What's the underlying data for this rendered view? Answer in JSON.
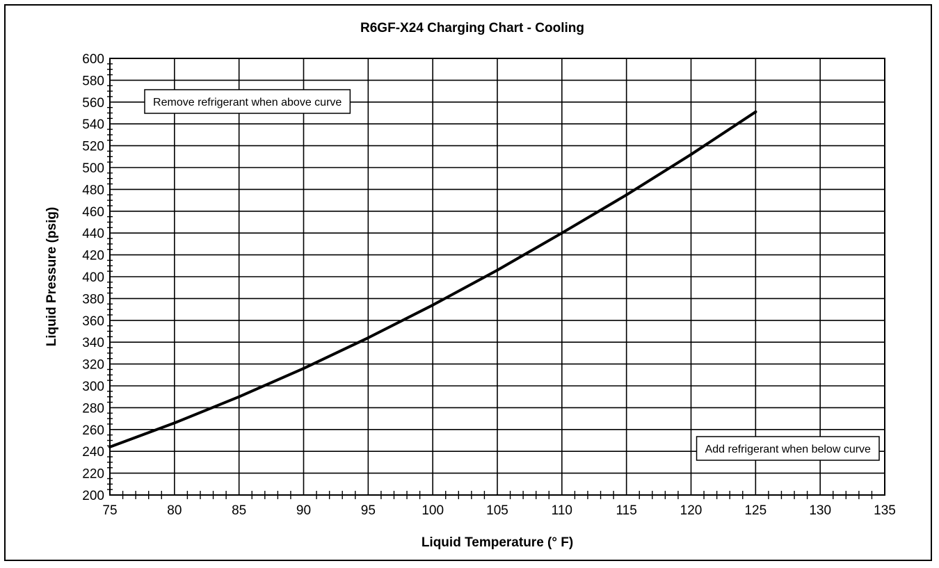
{
  "chart_data": {
    "type": "line",
    "title": "R6GF-X24 Charging Chart - Cooling",
    "xlabel": "Liquid Temperature (° F)",
    "ylabel": "Liquid Pressure (psig)",
    "xlim": [
      75,
      135
    ],
    "ylim": [
      200,
      600
    ],
    "x_ticks": [
      "75",
      "80",
      "85",
      "90",
      "95",
      "100",
      "105",
      "110",
      "115",
      "120",
      "125",
      "130",
      "135"
    ],
    "y_ticks": [
      "200",
      "220",
      "240",
      "260",
      "280",
      "300",
      "320",
      "340",
      "360",
      "380",
      "400",
      "420",
      "440",
      "460",
      "480",
      "500",
      "520",
      "540",
      "560",
      "580",
      "600"
    ],
    "grid": true,
    "legend": "none",
    "series": [
      {
        "x": [
          75,
          80,
          85,
          90,
          95,
          100,
          105,
          110,
          115,
          120,
          125
        ],
        "y": [
          244,
          266,
          290,
          316,
          344,
          374,
          406,
          440,
          475,
          512,
          551
        ],
        "color": "#000000"
      }
    ],
    "annotations": [
      {
        "text": "Remove refrigerant when above curve",
        "placement": "top-left"
      },
      {
        "text": "Add refrigerant when below curve",
        "placement": "bottom-right"
      }
    ]
  }
}
